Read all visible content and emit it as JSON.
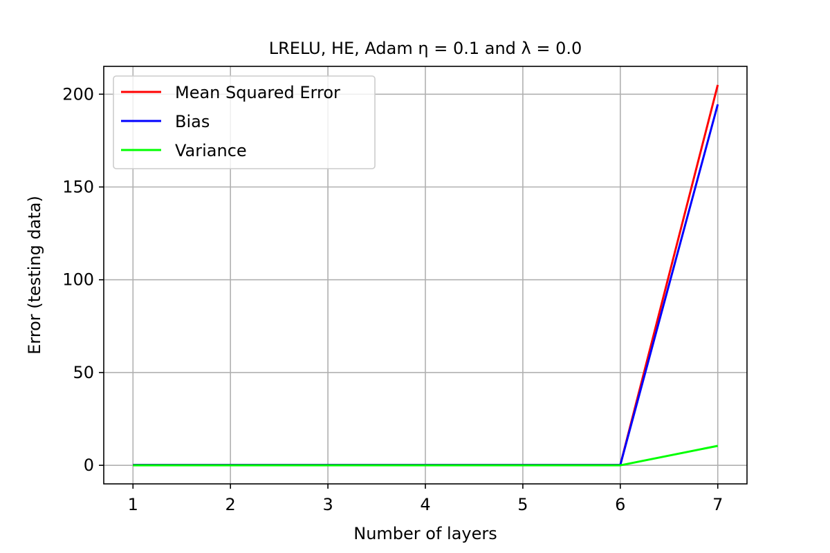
{
  "chart_data": {
    "type": "line",
    "title": "LRELU, HE, Adam η = 0.1 and λ = 0.0",
    "xlabel": "Number of layers",
    "ylabel": "Error (testing data)",
    "x": [
      1,
      2,
      3,
      4,
      5,
      6,
      7
    ],
    "xticks": [
      "1",
      "2",
      "3",
      "4",
      "5",
      "6",
      "7"
    ],
    "yticks": [
      "0",
      "50",
      "100",
      "150",
      "200"
    ],
    "xlim": [
      0.7,
      7.3
    ],
    "ylim": [
      -10,
      215
    ],
    "grid": true,
    "legend_position": "upper-left",
    "series": [
      {
        "name": "Mean Squared Error",
        "color": "#ff0000",
        "values": [
          0.2,
          0.2,
          0.2,
          0.2,
          0.2,
          0.2,
          205
        ]
      },
      {
        "name": "Bias",
        "color": "#0000ff",
        "values": [
          0.2,
          0.2,
          0.2,
          0.2,
          0.2,
          0.2,
          194.5
        ]
      },
      {
        "name": "Variance",
        "color": "#00ff00",
        "values": [
          0.0,
          0.0,
          0.0,
          0.0,
          0.0,
          0.0,
          10.5
        ]
      }
    ]
  }
}
